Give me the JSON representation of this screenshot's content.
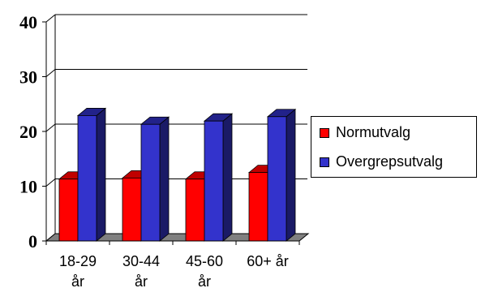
{
  "chart_data": {
    "type": "bar",
    "style": "3d-clustered-column",
    "categories": [
      [
        "18-29",
        "år"
      ],
      [
        "30-44",
        "år"
      ],
      [
        "45-60",
        "år"
      ],
      [
        "60+ år"
      ]
    ],
    "series": [
      {
        "name": "Normutvalg",
        "color": "#ff0000",
        "side_color": "#8a0000",
        "top_color": "#c00000",
        "values": [
          11.3,
          11.5,
          11.3,
          12.5
        ]
      },
      {
        "name": "Overgrepsutvalg",
        "color": "#3333cc",
        "side_color": "#1a1a66",
        "top_color": "#22228a",
        "values": [
          22.9,
          21.3,
          21.9,
          22.7
        ]
      }
    ],
    "y_ticks": [
      "0",
      "10",
      "20",
      "30",
      "40"
    ],
    "ylim": [
      0,
      40
    ],
    "grid": true,
    "legend_position": "right",
    "floor_color": "#808080"
  }
}
